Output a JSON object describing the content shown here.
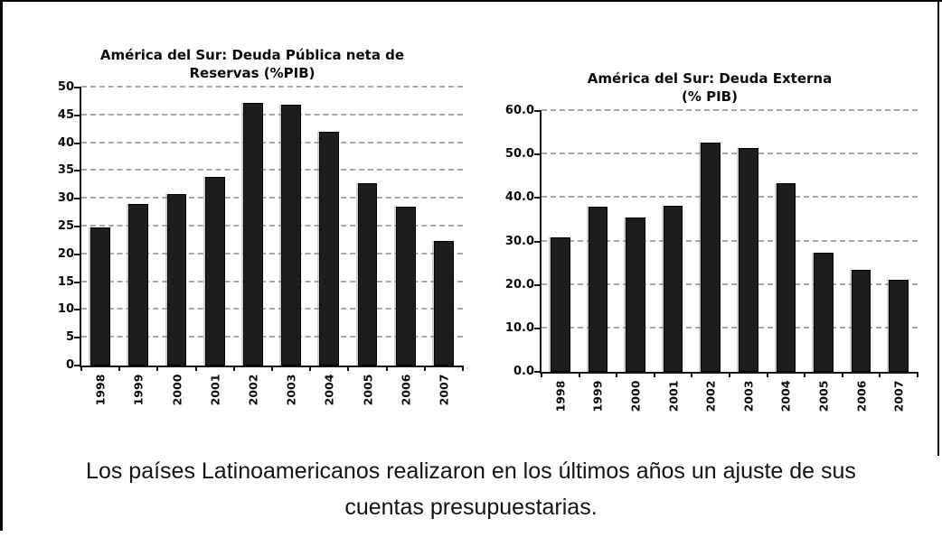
{
  "canvas": {
    "background": "#ffffff",
    "frame_color": "#000000"
  },
  "caption": {
    "line1": "Los países Latinoamericanos realizaron en los últimos años un ajuste de sus",
    "line2": "cuentas presupuestarias."
  },
  "chart_data": [
    {
      "type": "bar",
      "title": "América del Sur: Deuda Pública neta de Reservas (%PIB)",
      "title_line1": "América del Sur: Deuda Pública neta de",
      "title_line2": "Reservas (%PIB)",
      "categories": [
        "1998",
        "1999",
        "2000",
        "2001",
        "2002",
        "2003",
        "2004",
        "2005",
        "2006",
        "2007"
      ],
      "values": [
        24.9,
        29.1,
        30.8,
        33.9,
        47.3,
        46.9,
        42.0,
        32.8,
        28.6,
        22.4
      ],
      "ylim": [
        0,
        50
      ],
      "ytick_step": 5,
      "ytick_decimals": 0,
      "xlabel": "",
      "ylabel": "",
      "legend": "none",
      "grid": "horizontal-dashed",
      "bar_color": "#1d1d1d",
      "gridline_color": "#a9a9a9"
    },
    {
      "type": "bar",
      "title": "América del Sur: Deuda Externa (% PIB)",
      "title_line1": "América del Sur: Deuda Externa",
      "title_line2": "(% PIB)",
      "categories": [
        "1998",
        "1999",
        "2000",
        "2001",
        "2002",
        "2003",
        "2004",
        "2005",
        "2006",
        "2007"
      ],
      "values": [
        31.0,
        38.1,
        35.5,
        38.3,
        52.8,
        51.4,
        43.3,
        27.5,
        23.5,
        21.2
      ],
      "ylim": [
        0,
        60
      ],
      "ytick_step": 10,
      "ytick_decimals": 1,
      "xlabel": "",
      "ylabel": "",
      "legend": "none",
      "grid": "horizontal-dashed",
      "bar_color": "#1d1d1d",
      "gridline_color": "#a9a9a9"
    }
  ]
}
